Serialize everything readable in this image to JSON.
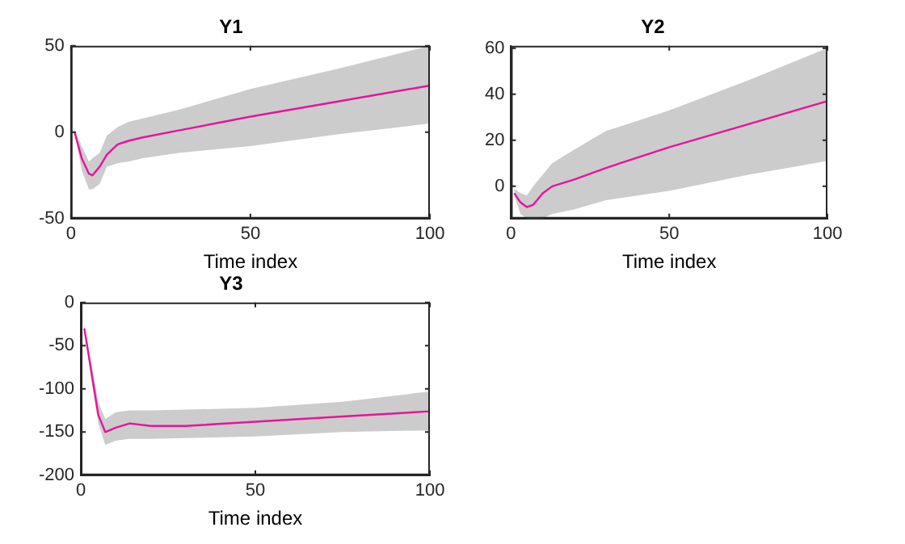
{
  "chart_data": [
    {
      "type": "line",
      "title": "Y1",
      "xlabel": "Time index",
      "xlim": [
        0,
        100
      ],
      "xticks": [
        0,
        50,
        100
      ],
      "ylim": [
        -50,
        50
      ],
      "yticks": [
        -50,
        0,
        50
      ],
      "grid": false,
      "legend": false,
      "marker": "none",
      "series": [
        {
          "color": "#e6149b",
          "x": [
            1,
            3,
            5,
            6,
            8,
            10,
            13,
            16,
            20,
            30,
            50,
            75,
            100
          ],
          "values": [
            0,
            -15,
            -24,
            -25,
            -20,
            -13,
            -7,
            -5,
            -3,
            1,
            9,
            18,
            27
          ],
          "lower": [
            0,
            -22,
            -33,
            -33,
            -30,
            -20,
            -18,
            -17,
            -15,
            -12,
            -8,
            -1,
            5
          ],
          "upper": [
            2,
            -8,
            -17,
            -15,
            -12,
            -2,
            3,
            6,
            8,
            13,
            25,
            37,
            50
          ]
        }
      ]
    },
    {
      "type": "line",
      "title": "Y2",
      "xlabel": "Time index",
      "xlim": [
        0,
        100
      ],
      "xticks": [
        0,
        50,
        100
      ],
      "ylim": [
        -14,
        61
      ],
      "yticks": [
        0,
        20,
        40,
        60
      ],
      "grid": false,
      "legend": false,
      "marker": "none",
      "series": [
        {
          "color": "#e6149b",
          "x": [
            1,
            3,
            5,
            7,
            10,
            13,
            20,
            30,
            50,
            75,
            100
          ],
          "values": [
            -3,
            -7,
            -9,
            -8,
            -3,
            0,
            3,
            8,
            17,
            27,
            37
          ],
          "lower": [
            -4,
            -12,
            -14,
            -14,
            -14,
            -12,
            -10,
            -6,
            -2,
            5,
            11
          ],
          "upper": [
            -1,
            -3,
            -4,
            0,
            5,
            10,
            16,
            24,
            33,
            46,
            60
          ]
        }
      ]
    },
    {
      "type": "line",
      "title": "Y3",
      "xlabel": "Time index",
      "xlim": [
        0,
        100
      ],
      "xticks": [
        0,
        50,
        100
      ],
      "ylim": [
        -200,
        0
      ],
      "yticks": [
        -200,
        -150,
        -100,
        -50,
        0
      ],
      "grid": false,
      "legend": false,
      "marker": "none",
      "series": [
        {
          "color": "#e6149b",
          "x": [
            1,
            3,
            5,
            7,
            10,
            14,
            20,
            30,
            50,
            75,
            100
          ],
          "values": [
            -30,
            -80,
            -130,
            -150,
            -145,
            -140,
            -143,
            -143,
            -138,
            -132,
            -126
          ],
          "lower": [
            -30,
            -90,
            -140,
            -165,
            -160,
            -158,
            -158,
            -157,
            -155,
            -150,
            -148
          ],
          "upper": [
            -25,
            -70,
            -115,
            -135,
            -127,
            -125,
            -125,
            -124,
            -122,
            -115,
            -103
          ]
        }
      ]
    }
  ]
}
